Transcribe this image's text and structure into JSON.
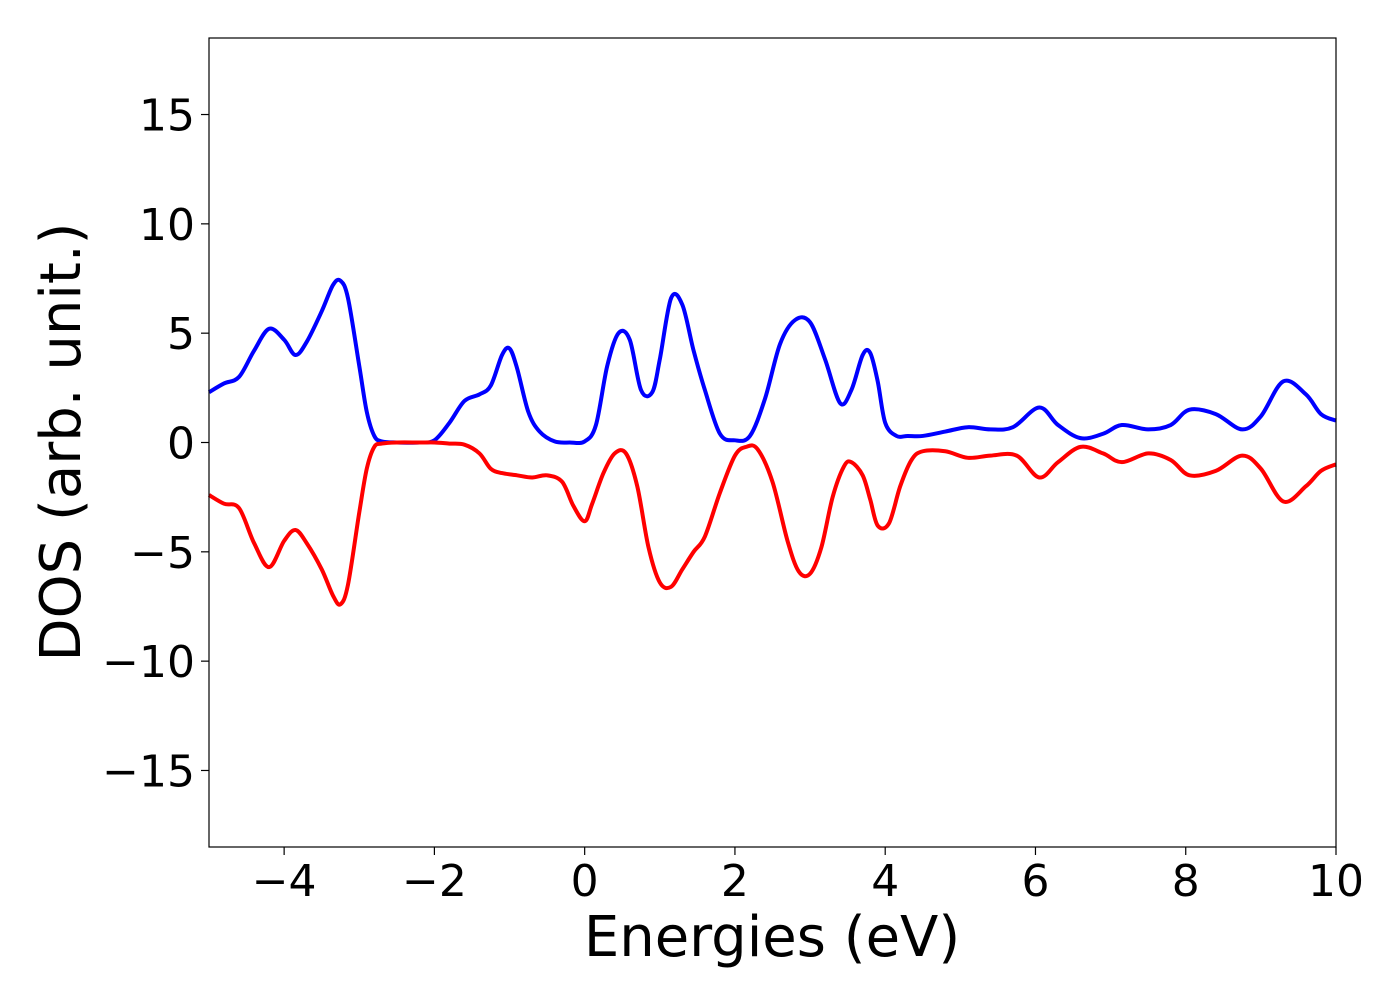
{
  "chart_data": {
    "type": "line",
    "title": "",
    "xlabel": "Energies (eV)",
    "ylabel": "DOS (arb. unit.)",
    "xlim": [
      -5,
      10
    ],
    "ylim": [
      -18.5,
      18.5
    ],
    "grid": false,
    "legend": "none",
    "x_ticks": [
      -4,
      -2,
      0,
      2,
      4,
      6,
      8,
      10
    ],
    "x_tick_labels": [
      "−4",
      "−2",
      "0",
      "2",
      "4",
      "6",
      "8",
      "10"
    ],
    "y_ticks": [
      15,
      10,
      5,
      0,
      -5,
      -10,
      -15
    ],
    "y_tick_labels": [
      "15",
      "10",
      "5",
      "0",
      "−5",
      "−10",
      "−15"
    ],
    "series": [
      {
        "color": "#0000ff",
        "x": [
          -5.0,
          -4.8,
          -4.6,
          -4.4,
          -4.2,
          -4.0,
          -3.85,
          -3.7,
          -3.5,
          -3.35,
          -3.25,
          -3.15,
          -3.0,
          -2.9,
          -2.8,
          -2.7,
          -2.5,
          -2.2,
          -2.0,
          -1.8,
          -1.6,
          -1.4,
          -1.25,
          -1.1,
          -1.0,
          -0.9,
          -0.75,
          -0.6,
          -0.4,
          -0.2,
          0.0,
          0.15,
          0.3,
          0.45,
          0.6,
          0.75,
          0.9,
          1.0,
          1.15,
          1.3,
          1.45,
          1.6,
          1.8,
          2.0,
          2.2,
          2.4,
          2.6,
          2.8,
          3.0,
          3.2,
          3.4,
          3.55,
          3.7,
          3.8,
          3.9,
          4.0,
          4.15,
          4.3,
          4.5,
          4.8,
          5.1,
          5.4,
          5.7,
          6.05,
          6.3,
          6.6,
          6.9,
          7.15,
          7.5,
          7.8,
          8.05,
          8.4,
          8.75,
          9.0,
          9.3,
          9.6,
          9.8,
          10.0
        ],
        "y": [
          2.3,
          2.7,
          3.0,
          4.2,
          5.2,
          4.7,
          4.0,
          4.6,
          6.0,
          7.2,
          7.4,
          6.6,
          3.5,
          1.4,
          0.3,
          0.05,
          0.0,
          0.0,
          0.1,
          0.9,
          1.9,
          2.2,
          2.6,
          4.0,
          4.3,
          3.4,
          1.4,
          0.5,
          0.05,
          0.0,
          0.05,
          0.8,
          3.5,
          5.0,
          4.7,
          2.4,
          2.3,
          3.8,
          6.6,
          6.3,
          4.2,
          2.4,
          0.4,
          0.1,
          0.3,
          2.0,
          4.5,
          5.6,
          5.5,
          3.8,
          1.8,
          2.4,
          4.0,
          4.1,
          2.8,
          0.9,
          0.3,
          0.3,
          0.3,
          0.5,
          0.7,
          0.6,
          0.7,
          1.6,
          0.8,
          0.2,
          0.4,
          0.8,
          0.6,
          0.8,
          1.5,
          1.3,
          0.6,
          1.2,
          2.8,
          2.2,
          1.3,
          1.0
        ]
      },
      {
        "color": "#ff0000",
        "x": [
          -5.0,
          -4.8,
          -4.6,
          -4.4,
          -4.2,
          -4.0,
          -3.85,
          -3.7,
          -3.5,
          -3.35,
          -3.25,
          -3.15,
          -3.0,
          -2.9,
          -2.8,
          -2.7,
          -2.5,
          -2.2,
          -2.0,
          -1.8,
          -1.6,
          -1.4,
          -1.25,
          -1.1,
          -0.9,
          -0.7,
          -0.5,
          -0.3,
          -0.15,
          0.0,
          0.1,
          0.25,
          0.4,
          0.55,
          0.7,
          0.85,
          1.0,
          1.15,
          1.3,
          1.45,
          1.6,
          1.8,
          2.0,
          2.15,
          2.3,
          2.5,
          2.7,
          2.85,
          3.0,
          3.15,
          3.3,
          3.45,
          3.55,
          3.7,
          3.8,
          3.9,
          4.05,
          4.2,
          4.35,
          4.5,
          4.8,
          5.1,
          5.4,
          5.75,
          6.05,
          6.3,
          6.6,
          6.9,
          7.15,
          7.5,
          7.8,
          8.05,
          8.4,
          8.75,
          9.0,
          9.3,
          9.6,
          9.8,
          10.0
        ],
        "y": [
          -2.4,
          -2.8,
          -3.0,
          -4.6,
          -5.7,
          -4.5,
          -4.0,
          -4.6,
          -5.8,
          -7.0,
          -7.4,
          -6.5,
          -3.2,
          -1.2,
          -0.2,
          -0.05,
          0.0,
          0.0,
          0.0,
          -0.05,
          -0.1,
          -0.5,
          -1.2,
          -1.4,
          -1.5,
          -1.6,
          -1.5,
          -1.8,
          -2.9,
          -3.6,
          -2.8,
          -1.4,
          -0.5,
          -0.5,
          -2.0,
          -4.8,
          -6.4,
          -6.6,
          -5.8,
          -5.0,
          -4.3,
          -2.3,
          -0.6,
          -0.2,
          -0.3,
          -1.8,
          -4.5,
          -5.9,
          -6.0,
          -4.8,
          -2.5,
          -1.1,
          -0.9,
          -1.5,
          -2.6,
          -3.8,
          -3.7,
          -2.0,
          -0.8,
          -0.4,
          -0.4,
          -0.7,
          -0.6,
          -0.6,
          -1.6,
          -0.9,
          -0.2,
          -0.5,
          -0.9,
          -0.5,
          -0.8,
          -1.5,
          -1.3,
          -0.6,
          -1.2,
          -2.7,
          -2.0,
          -1.3,
          -1.0
        ]
      }
    ]
  }
}
